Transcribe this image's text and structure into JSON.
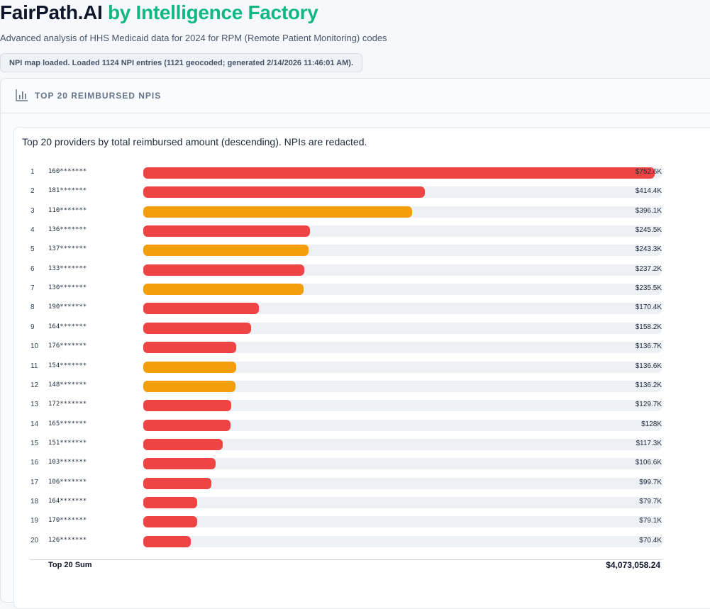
{
  "header": {
    "brand": "FairPath.AI",
    "by": "by Intelligence Factory",
    "subtitle": "Advanced analysis of HHS Medicaid data for 2024 for RPM (Remote Patient Monitoring) codes",
    "status": "NPI map loaded. Loaded 1124 NPI entries (1121 geocoded; generated 2/14/2026 11:46:01 AM)."
  },
  "panel": {
    "title": "TOP 20 REIMBURSED NPIS",
    "icon": "bar-chart-icon"
  },
  "card": {
    "description": "Top 20 providers by total reimbursed amount (descending). NPIs are redacted.",
    "sum_label": "Top 20 Sum",
    "sum_value": "$4,073,058.24"
  },
  "colors": {
    "red": "#ef4444",
    "orange": "#f59e0b",
    "green": "#10b981"
  },
  "chart_data": {
    "type": "bar",
    "orientation": "horizontal",
    "max": 752.6,
    "rows": [
      {
        "rank": "1",
        "npi": "160*******",
        "amount": 752.6,
        "label": "$752.6K",
        "color": "red"
      },
      {
        "rank": "2",
        "npi": "181*******",
        "amount": 414.4,
        "label": "$414.4K",
        "color": "red"
      },
      {
        "rank": "3",
        "npi": "110*******",
        "amount": 396.1,
        "label": "$396.1K",
        "color": "orange"
      },
      {
        "rank": "4",
        "npi": "136*******",
        "amount": 245.5,
        "label": "$245.5K",
        "color": "red"
      },
      {
        "rank": "5",
        "npi": "137*******",
        "amount": 243.3,
        "label": "$243.3K",
        "color": "orange"
      },
      {
        "rank": "6",
        "npi": "133*******",
        "amount": 237.2,
        "label": "$237.2K",
        "color": "red"
      },
      {
        "rank": "7",
        "npi": "130*******",
        "amount": 235.5,
        "label": "$235.5K",
        "color": "orange"
      },
      {
        "rank": "8",
        "npi": "190*******",
        "amount": 170.4,
        "label": "$170.4K",
        "color": "red"
      },
      {
        "rank": "9",
        "npi": "164*******",
        "amount": 158.2,
        "label": "$158.2K",
        "color": "red"
      },
      {
        "rank": "10",
        "npi": "176*******",
        "amount": 136.7,
        "label": "$136.7K",
        "color": "red"
      },
      {
        "rank": "11",
        "npi": "154*******",
        "amount": 136.6,
        "label": "$136.6K",
        "color": "orange"
      },
      {
        "rank": "12",
        "npi": "148*******",
        "amount": 136.2,
        "label": "$136.2K",
        "color": "orange"
      },
      {
        "rank": "13",
        "npi": "172*******",
        "amount": 129.7,
        "label": "$129.7K",
        "color": "red"
      },
      {
        "rank": "14",
        "npi": "165*******",
        "amount": 128.0,
        "label": "$128K",
        "color": "red"
      },
      {
        "rank": "15",
        "npi": "151*******",
        "amount": 117.3,
        "label": "$117.3K",
        "color": "red"
      },
      {
        "rank": "16",
        "npi": "103*******",
        "amount": 106.6,
        "label": "$106.6K",
        "color": "red"
      },
      {
        "rank": "17",
        "npi": "106*******",
        "amount": 99.7,
        "label": "$99.7K",
        "color": "red"
      },
      {
        "rank": "18",
        "npi": "164*******",
        "amount": 79.7,
        "label": "$79.7K",
        "color": "red"
      },
      {
        "rank": "19",
        "npi": "170*******",
        "amount": 79.1,
        "label": "$79.1K",
        "color": "red"
      },
      {
        "rank": "20",
        "npi": "126*******",
        "amount": 70.4,
        "label": "$70.4K",
        "color": "red"
      }
    ]
  }
}
